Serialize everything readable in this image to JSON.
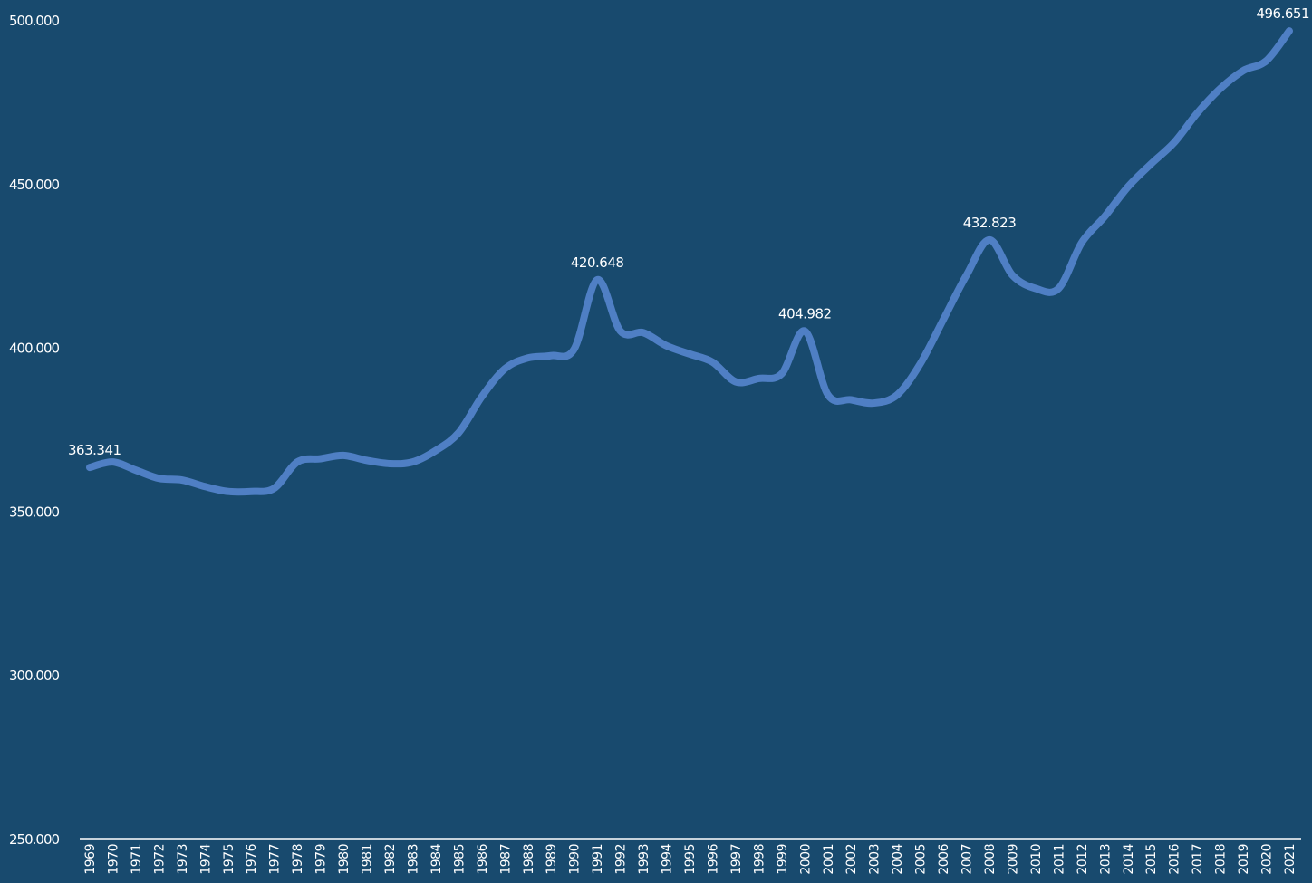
{
  "chart_data": {
    "type": "line",
    "title": "",
    "xlabel": "",
    "ylabel": "",
    "ylim": [
      250000,
      500000
    ],
    "y_ticks": [
      250000,
      300000,
      350000,
      400000,
      450000,
      500000
    ],
    "y_tick_labels": [
      "250.000",
      "300.000",
      "350.000",
      "400.000",
      "450.000",
      "500.000"
    ],
    "grid": false,
    "legend": "none",
    "line_color": "#4f7fc4",
    "background_color": "#184a6e",
    "axis_color": "#ffffff",
    "categories": [
      "1969",
      "1970",
      "1971",
      "1972",
      "1973",
      "1974",
      "1975",
      "1976",
      "1977",
      "1978",
      "1979",
      "1980",
      "1981",
      "1982",
      "1983",
      "1984",
      "1985",
      "1986",
      "1987",
      "1988",
      "1989",
      "1990",
      "1991",
      "1992",
      "1993",
      "1994",
      "1995",
      "1996",
      "1997",
      "1998",
      "1999",
      "2000",
      "2001",
      "2002",
      "2003",
      "2004",
      "2005",
      "2006",
      "2007",
      "2008",
      "2009",
      "2010",
      "2011",
      "2012",
      "2013",
      "2014",
      "2015",
      "2016",
      "2017",
      "2018",
      "2019",
      "2020",
      "2021"
    ],
    "series": [
      {
        "values": [
          363341,
          365000,
          362500,
          360000,
          359500,
          357500,
          356000,
          356000,
          357000,
          365000,
          366000,
          367000,
          365500,
          364500,
          365000,
          368500,
          374000,
          385000,
          393500,
          396800,
          397500,
          399500,
          420648,
          405000,
          404500,
          400500,
          398000,
          395500,
          389500,
          390500,
          392000,
          404982,
          385500,
          384000,
          383000,
          385500,
          395000,
          408500,
          422000,
          432823,
          422000,
          418000,
          418000,
          432000,
          440000,
          449000,
          456000,
          462500,
          471500,
          479000,
          484500,
          487500,
          496651
        ]
      }
    ],
    "data_labels": [
      {
        "category": "1969",
        "text": "363.341"
      },
      {
        "category": "1991",
        "text": "420.648"
      },
      {
        "category": "2000",
        "text": "404.982"
      },
      {
        "category": "2008",
        "text": "432.823"
      },
      {
        "category": "2021",
        "text": "496.651"
      }
    ]
  }
}
